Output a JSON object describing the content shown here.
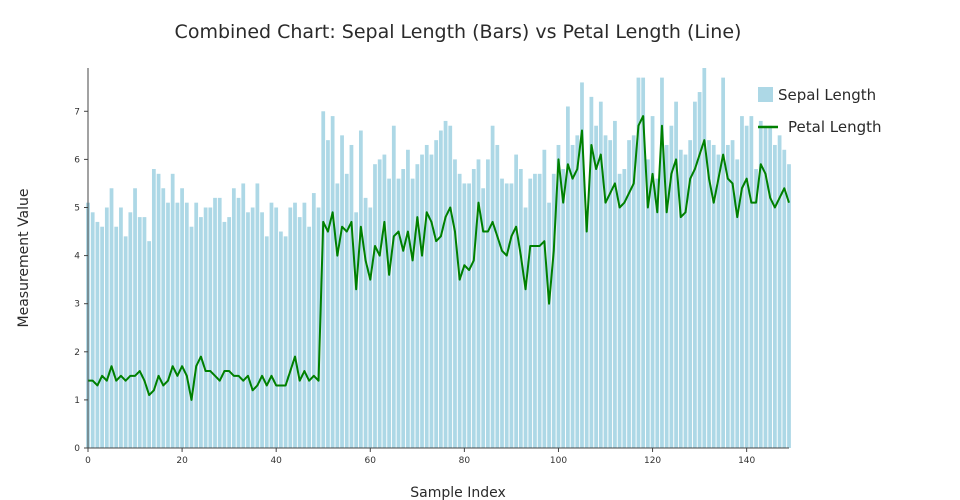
{
  "chart_data": {
    "type": "bar",
    "title": "Combined Chart: Sepal Length (Bars) vs Petal Length (Line)",
    "xlabel": "Sample Index",
    "ylabel": "Measurement Value",
    "xlim": [
      0,
      149
    ],
    "ylim": [
      0,
      7.9
    ],
    "x_ticks": [
      0,
      20,
      40,
      60,
      80,
      100,
      120,
      140
    ],
    "y_ticks": [
      0,
      1,
      2,
      3,
      4,
      5,
      6,
      7
    ],
    "grid": false,
    "legend_position": "top-right",
    "series": [
      {
        "name": "Sepal Length",
        "kind": "bar",
        "color": "#add8e6",
        "values": [
          5.1,
          4.9,
          4.7,
          4.6,
          5.0,
          5.4,
          4.6,
          5.0,
          4.4,
          4.9,
          5.4,
          4.8,
          4.8,
          4.3,
          5.8,
          5.7,
          5.4,
          5.1,
          5.7,
          5.1,
          5.4,
          5.1,
          4.6,
          5.1,
          4.8,
          5.0,
          5.0,
          5.2,
          5.2,
          4.7,
          4.8,
          5.4,
          5.2,
          5.5,
          4.9,
          5.0,
          5.5,
          4.9,
          4.4,
          5.1,
          5.0,
          4.5,
          4.4,
          5.0,
          5.1,
          4.8,
          5.1,
          4.6,
          5.3,
          5.0,
          7.0,
          6.4,
          6.9,
          5.5,
          6.5,
          5.7,
          6.3,
          4.9,
          6.6,
          5.2,
          5.0,
          5.9,
          6.0,
          6.1,
          5.6,
          6.7,
          5.6,
          5.8,
          6.2,
          5.6,
          5.9,
          6.1,
          6.3,
          6.1,
          6.4,
          6.6,
          6.8,
          6.7,
          6.0,
          5.7,
          5.5,
          5.5,
          5.8,
          6.0,
          5.4,
          6.0,
          6.7,
          6.3,
          5.6,
          5.5,
          5.5,
          6.1,
          5.8,
          5.0,
          5.6,
          5.7,
          5.7,
          6.2,
          5.1,
          5.7,
          6.3,
          5.8,
          7.1,
          6.3,
          6.5,
          7.6,
          4.9,
          7.3,
          6.7,
          7.2,
          6.5,
          6.4,
          6.8,
          5.7,
          5.8,
          6.4,
          6.5,
          7.7,
          7.7,
          6.0,
          6.9,
          5.6,
          7.7,
          6.3,
          6.7,
          7.2,
          6.2,
          6.1,
          6.4,
          7.2,
          7.4,
          7.9,
          6.4,
          6.3,
          6.1,
          7.7,
          6.3,
          6.4,
          6.0,
          6.9,
          6.7,
          6.9,
          5.8,
          6.8,
          6.7,
          6.7,
          6.3,
          6.5,
          6.2,
          5.9
        ]
      },
      {
        "name": "Petal Length",
        "kind": "line",
        "color": "#008000",
        "values": [
          1.4,
          1.4,
          1.3,
          1.5,
          1.4,
          1.7,
          1.4,
          1.5,
          1.4,
          1.5,
          1.5,
          1.6,
          1.4,
          1.1,
          1.2,
          1.5,
          1.3,
          1.4,
          1.7,
          1.5,
          1.7,
          1.5,
          1.0,
          1.7,
          1.9,
          1.6,
          1.6,
          1.5,
          1.4,
          1.6,
          1.6,
          1.5,
          1.5,
          1.4,
          1.5,
          1.2,
          1.3,
          1.5,
          1.3,
          1.5,
          1.3,
          1.3,
          1.3,
          1.6,
          1.9,
          1.4,
          1.6,
          1.4,
          1.5,
          1.4,
          4.7,
          4.5,
          4.9,
          4.0,
          4.6,
          4.5,
          4.7,
          3.3,
          4.6,
          3.9,
          3.5,
          4.2,
          4.0,
          4.7,
          3.6,
          4.4,
          4.5,
          4.1,
          4.5,
          3.9,
          4.8,
          4.0,
          4.9,
          4.7,
          4.3,
          4.4,
          4.8,
          5.0,
          4.5,
          3.5,
          3.8,
          3.7,
          3.9,
          5.1,
          4.5,
          4.5,
          4.7,
          4.4,
          4.1,
          4.0,
          4.4,
          4.6,
          4.0,
          3.3,
          4.2,
          4.2,
          4.2,
          4.3,
          3.0,
          4.1,
          6.0,
          5.1,
          5.9,
          5.6,
          5.8,
          6.6,
          4.5,
          6.3,
          5.8,
          6.1,
          5.1,
          5.3,
          5.5,
          5.0,
          5.1,
          5.3,
          5.5,
          6.7,
          6.9,
          5.0,
          5.7,
          4.9,
          6.7,
          4.9,
          5.7,
          6.0,
          4.8,
          4.9,
          5.6,
          5.8,
          6.1,
          6.4,
          5.6,
          5.1,
          5.6,
          6.1,
          5.6,
          5.5,
          4.8,
          5.4,
          5.6,
          5.1,
          5.1,
          5.9,
          5.7,
          5.2,
          5.0,
          5.2,
          5.4,
          5.1
        ]
      }
    ]
  }
}
